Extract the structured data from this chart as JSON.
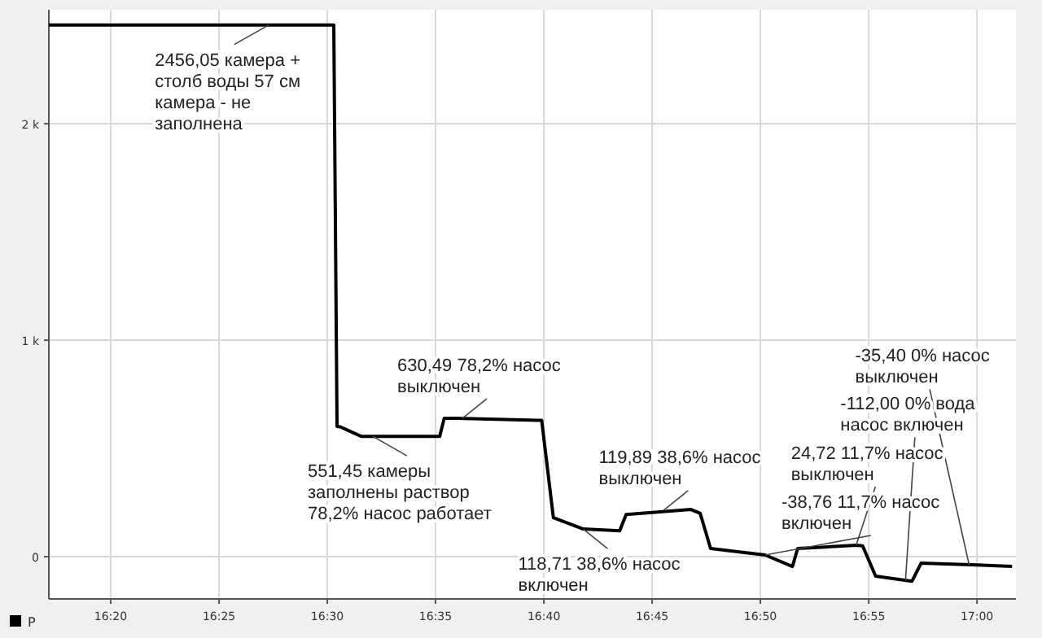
{
  "chart_data": {
    "type": "line",
    "x": [
      16.2857,
      16.505,
      16.5075,
      16.51,
      16.526,
      16.5865,
      16.59,
      16.599,
      16.662,
      16.665,
      16.674,
      16.697,
      16.725,
      16.73,
      16.78,
      16.787,
      16.795,
      16.837,
      16.858,
      16.862,
      16.907,
      16.912,
      16.922,
      16.95,
      16.957,
      17.0,
      17.027
    ],
    "series": [
      {
        "name": "P",
        "color": "#000000",
        "values": [
          2456,
          2456,
          602,
          600,
          556,
          556,
          639,
          639,
          630,
          630,
          180,
          128,
          120,
          195,
          218,
          200,
          38,
          8,
          -45,
          38,
          53,
          50,
          -90,
          -113,
          -30,
          -38,
          -45
        ]
      }
    ],
    "xlim": [
      16.2857,
      17.03
    ],
    "xticks": [
      {
        "value": 16.3333,
        "label": "16:20"
      },
      {
        "value": 16.4167,
        "label": "16:25"
      },
      {
        "value": 16.5,
        "label": "16:30"
      },
      {
        "value": 16.5833,
        "label": "16:35"
      },
      {
        "value": 16.6667,
        "label": "16:40"
      },
      {
        "value": 16.75,
        "label": "16:45"
      },
      {
        "value": 16.8333,
        "label": "16:50"
      },
      {
        "value": 16.9167,
        "label": "16:55"
      },
      {
        "value": 17.0,
        "label": "17:00"
      }
    ],
    "ylim": [
      -195,
      2526
    ],
    "yticks": [
      0,
      {
        "value": 1000,
        "label": "1 k"
      },
      {
        "value": 2000,
        "label": "2 k"
      }
    ],
    "grid": true,
    "legend": "bottom left",
    "marker": "none",
    "line_style": "solid",
    "annotations": [
      {
        "text": "2456,05 камера + столб воды 57 см камера - не заполнена",
        "x": 16.455,
        "y": 2456
      },
      {
        "text": "551,45 камеры заполнены раствор 78,2% насос работает",
        "x": 16.535,
        "y": 556
      },
      {
        "text": "630,49 78,2% насос выключен",
        "x": 16.604,
        "y": 639
      },
      {
        "text": "118,71 38,6% насос включен",
        "x": 16.697,
        "y": 128
      },
      {
        "text": "119,89 38,6% насос выключен",
        "x": 16.759,
        "y": 215
      },
      {
        "text": "-38,76 11,7% насос включен",
        "x": 16.837,
        "y": 8
      },
      {
        "text": "24,72 11,7% насос выключен",
        "x": 16.907,
        "y": 53
      },
      {
        "text": "-112,00 0% вода насос включен",
        "x": 16.945,
        "y": -110
      },
      {
        "text": "-35,40 0% насос выключен",
        "x": 16.994,
        "y": -38
      }
    ]
  }
}
